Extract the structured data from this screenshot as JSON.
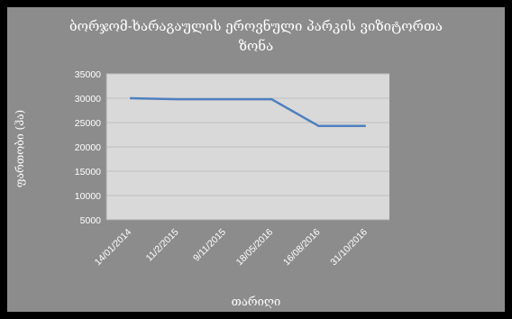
{
  "chart_data": {
    "type": "line",
    "title_line1": "ბორჯომ-ხარაგაულის ეროვნული პარკის ვიზიტორთა",
    "title_line2": "ზონა",
    "xlabel": "თარიღი",
    "ylabel": "ფართობი (ჰა)",
    "categories": [
      "14/01/2014",
      "11/2/2015",
      "9/11/2015",
      "18/05/2016",
      "16/08/2016",
      "31/10/2016"
    ],
    "values": [
      30000,
      29800,
      29800,
      29800,
      24300,
      24300
    ],
    "ylim": [
      5000,
      35000
    ],
    "yticks": [
      5000,
      10000,
      15000,
      20000,
      25000,
      30000,
      35000
    ],
    "grid": true,
    "legend": "none",
    "colors": {
      "line": "#4f7fc0",
      "plot_bg": "#d9d9d9",
      "frame_bg": "#8c8c8c",
      "grid": "#bfbfbf"
    }
  }
}
